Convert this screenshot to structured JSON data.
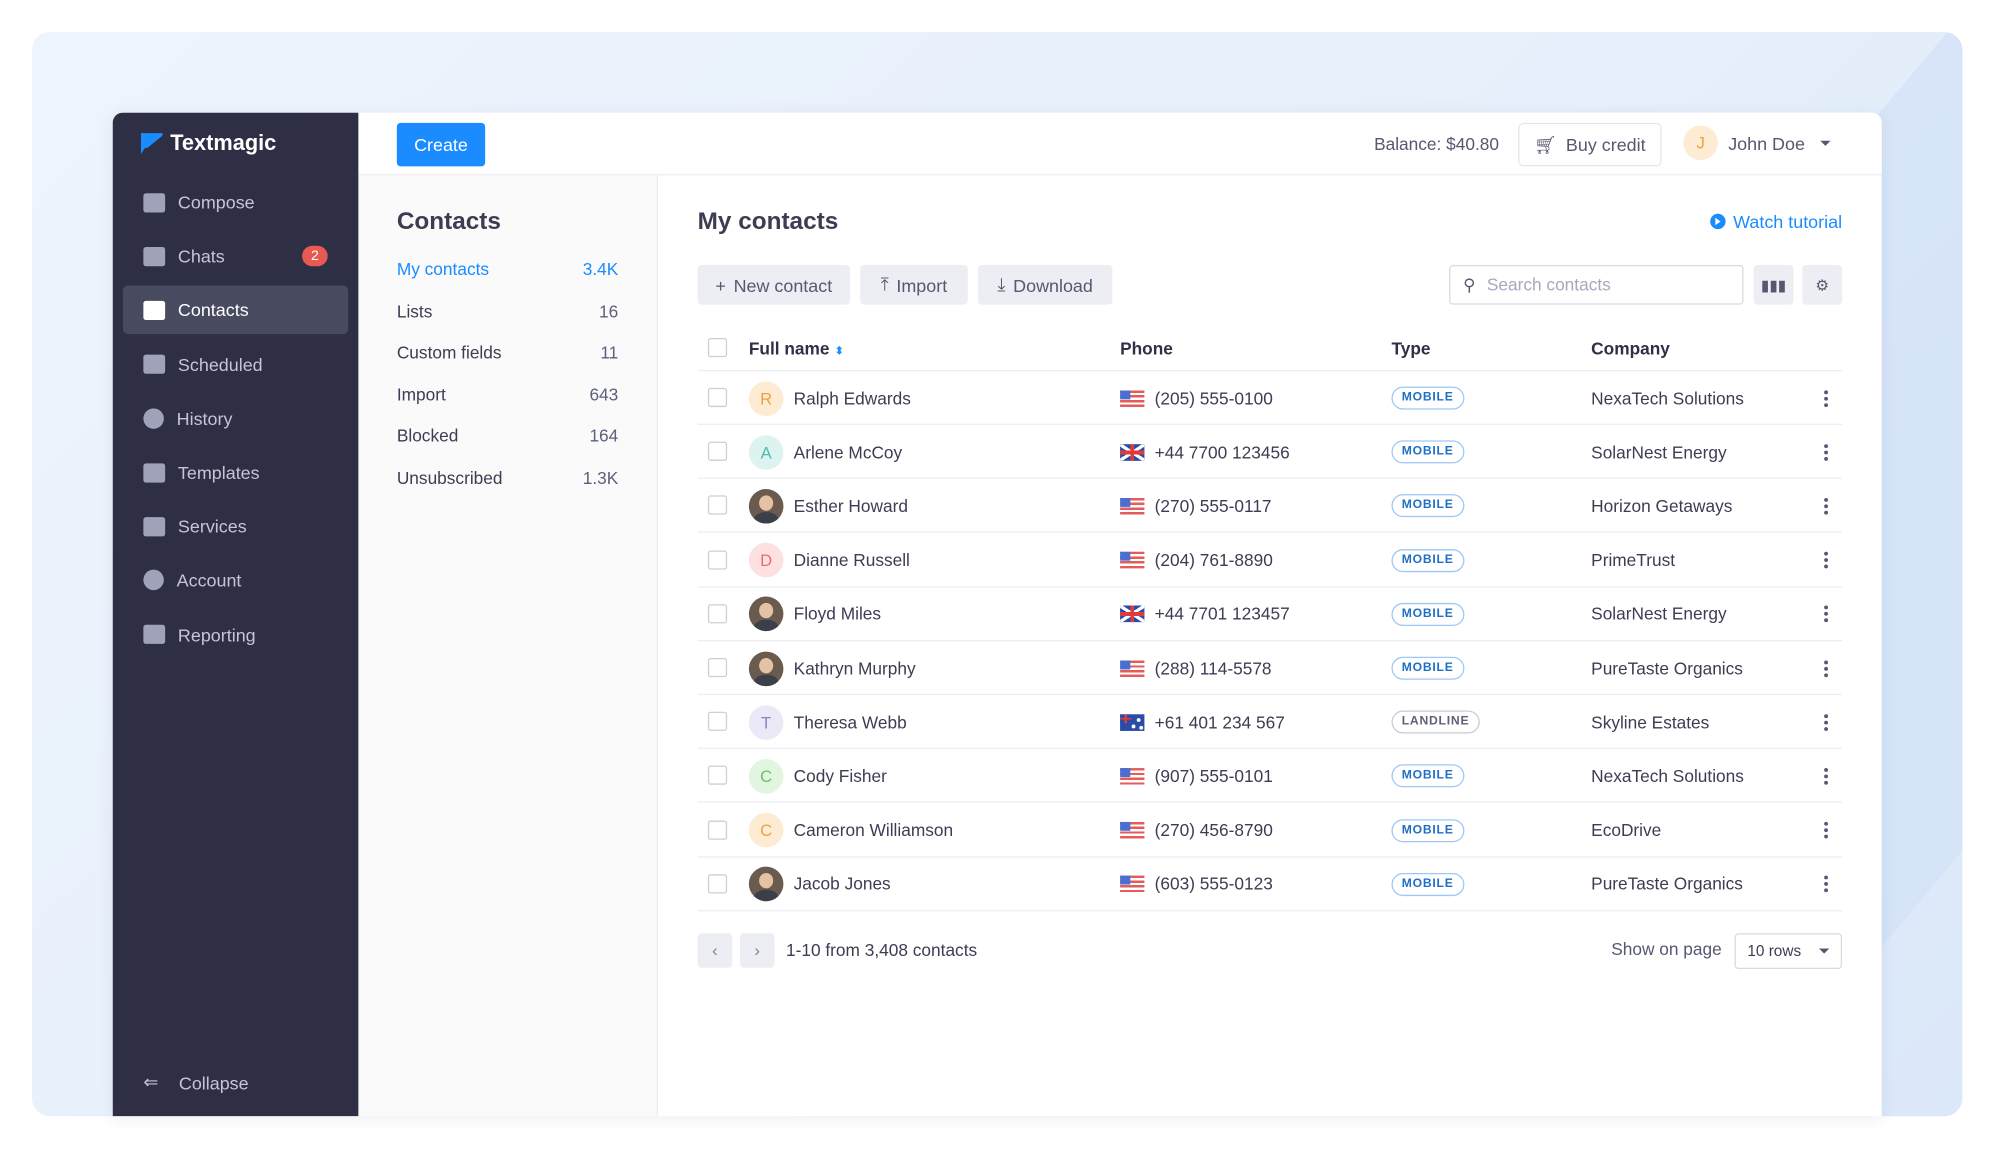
{
  "brand": {
    "name": "Textmagic",
    "accent": "#1a8cff"
  },
  "sidebar": {
    "items": [
      {
        "label": "Compose",
        "icon": "compose-icon"
      },
      {
        "label": "Chats",
        "icon": "chat-icon",
        "badge": "2"
      },
      {
        "label": "Contacts",
        "icon": "contacts-icon",
        "active": true
      },
      {
        "label": "Scheduled",
        "icon": "calendar-icon"
      },
      {
        "label": "History",
        "icon": "history-icon"
      },
      {
        "label": "Templates",
        "icon": "clipboard-icon"
      },
      {
        "label": "Services",
        "icon": "services-icon"
      },
      {
        "label": "Account",
        "icon": "account-icon"
      },
      {
        "label": "Reporting",
        "icon": "chart-icon"
      }
    ],
    "collapse_label": "Collapse"
  },
  "topbar": {
    "create_label": "Create",
    "balance": "Balance: $40.80",
    "buy_credit_label": "Buy credit",
    "user": {
      "initial": "J",
      "name": "John Doe"
    }
  },
  "subpanel": {
    "title": "Contacts",
    "items": [
      {
        "label": "My contacts",
        "count": "3.4K",
        "active": true
      },
      {
        "label": "Lists",
        "count": "16"
      },
      {
        "label": "Custom fields",
        "count": "11"
      },
      {
        "label": "Import",
        "count": "643"
      },
      {
        "label": "Blocked",
        "count": "164"
      },
      {
        "label": "Unsubscribed",
        "count": "1.3K"
      }
    ]
  },
  "main": {
    "title": "My contacts",
    "watch_tutorial": "Watch tutorial",
    "toolbar": {
      "new_contact": "New contact",
      "import": "Import",
      "download": "Download",
      "search_placeholder": "Search contacts",
      "search_value": ""
    },
    "columns": {
      "name": "Full name",
      "phone": "Phone",
      "type": "Type",
      "company": "Company"
    },
    "rows": [
      {
        "name": "Ralph Edwards",
        "avatar": "R",
        "avatar_bg": "#fdebd4",
        "avatar_fg": "#f0a040",
        "flag": "us",
        "phone": "(205) 555-0100",
        "type": "MOBILE",
        "company": "NexaTech Solutions"
      },
      {
        "name": "Arlene McCoy",
        "avatar": "A",
        "avatar_bg": "#dcf3f0",
        "avatar_fg": "#4fbdb0",
        "flag": "uk",
        "phone": "+44 7700 123456",
        "type": "MOBILE",
        "company": "SolarNest Energy"
      },
      {
        "name": "Esther Howard",
        "avatar": "photo",
        "flag": "us",
        "phone": "(270) 555-0117",
        "type": "MOBILE",
        "company": "Horizon Getaways"
      },
      {
        "name": "Dianne Russell",
        "avatar": "D",
        "avatar_bg": "#fde1e1",
        "avatar_fg": "#ea6b6b",
        "flag": "us",
        "phone": "(204) 761-8890",
        "type": "MOBILE",
        "company": "PrimeTrust"
      },
      {
        "name": "Floyd Miles",
        "avatar": "photo",
        "flag": "uk",
        "phone": "+44 7701 123457",
        "type": "MOBILE",
        "company": "SolarNest Energy"
      },
      {
        "name": "Kathryn Murphy",
        "avatar": "photo",
        "flag": "us",
        "phone": "(288) 114-5578",
        "type": "MOBILE",
        "company": "PureTaste Organics"
      },
      {
        "name": "Theresa Webb",
        "avatar": "T",
        "avatar_bg": "#ebe8f7",
        "avatar_fg": "#8b84bf",
        "flag": "au",
        "phone": "+61 401 234 567",
        "type": "LANDLINE",
        "company": "Skyline Estates"
      },
      {
        "name": "Cody Fisher",
        "avatar": "C",
        "avatar_bg": "#e2f5e0",
        "avatar_fg": "#6cc062",
        "flag": "us",
        "phone": "(907) 555-0101",
        "type": "MOBILE",
        "company": "NexaTech Solutions"
      },
      {
        "name": "Cameron Williamson",
        "avatar": "C",
        "avatar_bg": "#fdebd4",
        "avatar_fg": "#f0a040",
        "flag": "us",
        "phone": "(270) 456-8790",
        "type": "MOBILE",
        "company": "EcoDrive"
      },
      {
        "name": "Jacob Jones",
        "avatar": "photo",
        "flag": "us",
        "phone": "(603) 555-0123",
        "type": "MOBILE",
        "company": "PureTaste Organics"
      }
    ],
    "pagination": {
      "info": "1-10 from 3,408 contacts",
      "show_label": "Show on page",
      "rows_value": "10 rows"
    }
  }
}
